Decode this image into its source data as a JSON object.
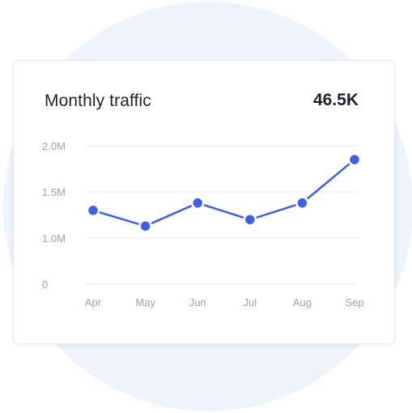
{
  "card": {
    "title": "Monthly traffic",
    "value": "46.5K"
  },
  "colors": {
    "line": "#3d5fe6",
    "grid": "#e8eaee",
    "background_circle": "#eef3fc"
  },
  "chart_data": {
    "type": "line",
    "categories": [
      "Apr",
      "May",
      "Jun",
      "Jul",
      "Aug",
      "Sep"
    ],
    "series": [
      {
        "values": [
          1300000,
          1130000,
          1380000,
          1200000,
          1380000,
          1850000
        ]
      }
    ],
    "y_ticks": [
      {
        "value": 0,
        "label": "0"
      },
      {
        "value": 1000000,
        "label": "1.0M"
      },
      {
        "value": 1500000,
        "label": "1.5M"
      },
      {
        "value": 2000000,
        "label": "2.0M"
      }
    ],
    "ylim": [
      0,
      2000000
    ],
    "grid": true,
    "legend": "none"
  }
}
